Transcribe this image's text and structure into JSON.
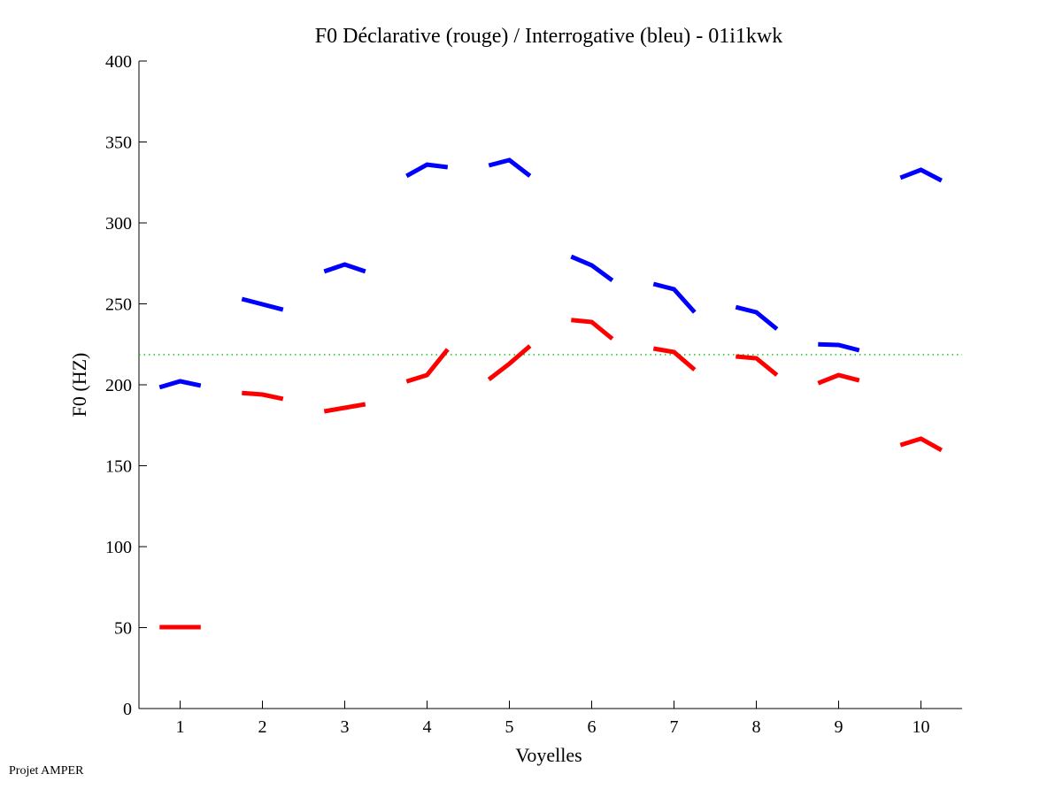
{
  "chart_data": {
    "type": "line",
    "title": "F0 Déclarative (rouge) / Interrogative (bleu) - 01i1kwk",
    "xlabel": "Voyelles",
    "ylabel": "F0 (HZ)",
    "xlim": [
      0.5,
      10.5
    ],
    "ylim": [
      0,
      400
    ],
    "xticks": [
      "1",
      "2",
      "3",
      "4",
      "5",
      "6",
      "7",
      "8",
      "9",
      "10"
    ],
    "yticks": [
      "0",
      "50",
      "100",
      "150",
      "200",
      "250",
      "300",
      "350",
      "400"
    ],
    "grid": false,
    "reference_line": {
      "value": 218.6,
      "color": "#00c000",
      "style": "dotted"
    },
    "series": [
      {
        "name": "Interrogative (bleu)",
        "color": "#0000ff",
        "segments": [
          [
            198.4,
            202.2,
            199.5
          ],
          [
            253.0,
            249.7,
            246.4
          ],
          [
            270.0,
            274.3,
            270.0
          ],
          [
            329.0,
            336.0,
            334.4
          ],
          [
            335.5,
            338.8,
            329.0
          ],
          [
            279.2,
            273.8,
            264.5
          ],
          [
            262.3,
            259.0,
            244.8
          ],
          [
            248.0,
            244.8,
            234.4
          ],
          [
            225.0,
            224.6,
            221.3
          ],
          [
            327.9,
            332.8,
            326.2
          ]
        ]
      },
      {
        "name": "Déclarative (rouge)",
        "color": "#ff0000",
        "segments": [
          [
            50.3,
            50.3,
            50.3
          ],
          [
            195.0,
            194.0,
            191.3
          ],
          [
            183.6,
            185.8,
            188.0
          ],
          [
            202.0,
            206.0,
            221.9
          ],
          [
            203.3,
            213.0,
            224.0
          ],
          [
            240.0,
            238.8,
            228.4
          ],
          [
            222.4,
            220.2,
            209.3
          ],
          [
            217.5,
            216.4,
            206.0
          ],
          [
            201.0,
            206.0,
            202.7
          ],
          [
            162.8,
            166.7,
            159.6
          ]
        ]
      }
    ]
  },
  "footer": "Projet AMPER"
}
